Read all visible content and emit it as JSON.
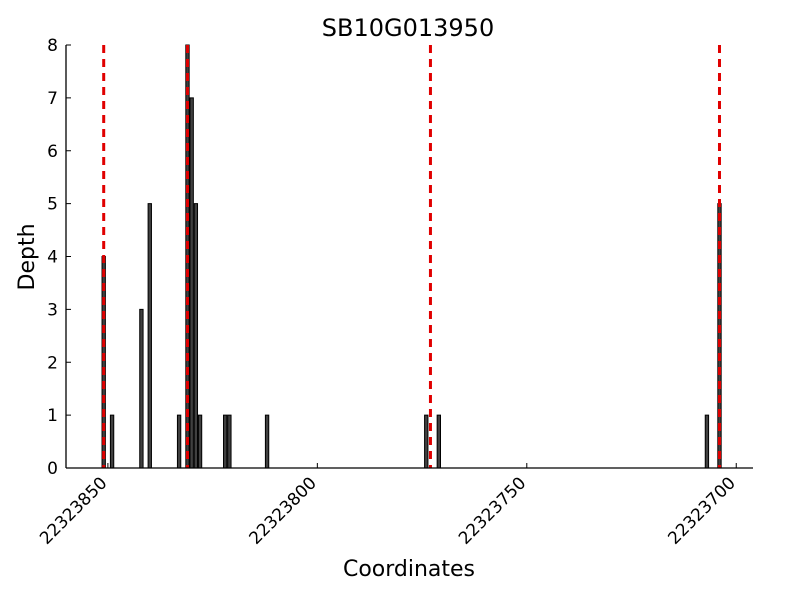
{
  "chart_data": {
    "type": "bar",
    "title": "SB10G013950",
    "xlabel": "Coordinates",
    "ylabel": "Depth",
    "x_reversed": true,
    "xlim": [
      22323860,
      22323696
    ],
    "ylim": [
      0,
      8
    ],
    "x_ticks": [
      22323850,
      22323800,
      22323750,
      22323700
    ],
    "y_ticks": [
      0,
      1,
      2,
      3,
      4,
      5,
      6,
      7,
      8
    ],
    "grid": false,
    "legend": "none",
    "bar_color": "#404040",
    "line_color": "#e00000",
    "bars": [
      {
        "x": 22323851,
        "y": 4
      },
      {
        "x": 22323849,
        "y": 1
      },
      {
        "x": 22323842,
        "y": 3
      },
      {
        "x": 22323840,
        "y": 5
      },
      {
        "x": 22323833,
        "y": 1
      },
      {
        "x": 22323831,
        "y": 8
      },
      {
        "x": 22323830,
        "y": 7
      },
      {
        "x": 22323829,
        "y": 5
      },
      {
        "x": 22323828,
        "y": 1
      },
      {
        "x": 22323822,
        "y": 1
      },
      {
        "x": 22323821,
        "y": 1
      },
      {
        "x": 22323812,
        "y": 1
      },
      {
        "x": 22323774,
        "y": 1
      },
      {
        "x": 22323771,
        "y": 1
      },
      {
        "x": 22323707,
        "y": 1
      },
      {
        "x": 22323704,
        "y": 5
      }
    ],
    "vlines": [
      22323851,
      22323831,
      22323773,
      22323704
    ]
  }
}
